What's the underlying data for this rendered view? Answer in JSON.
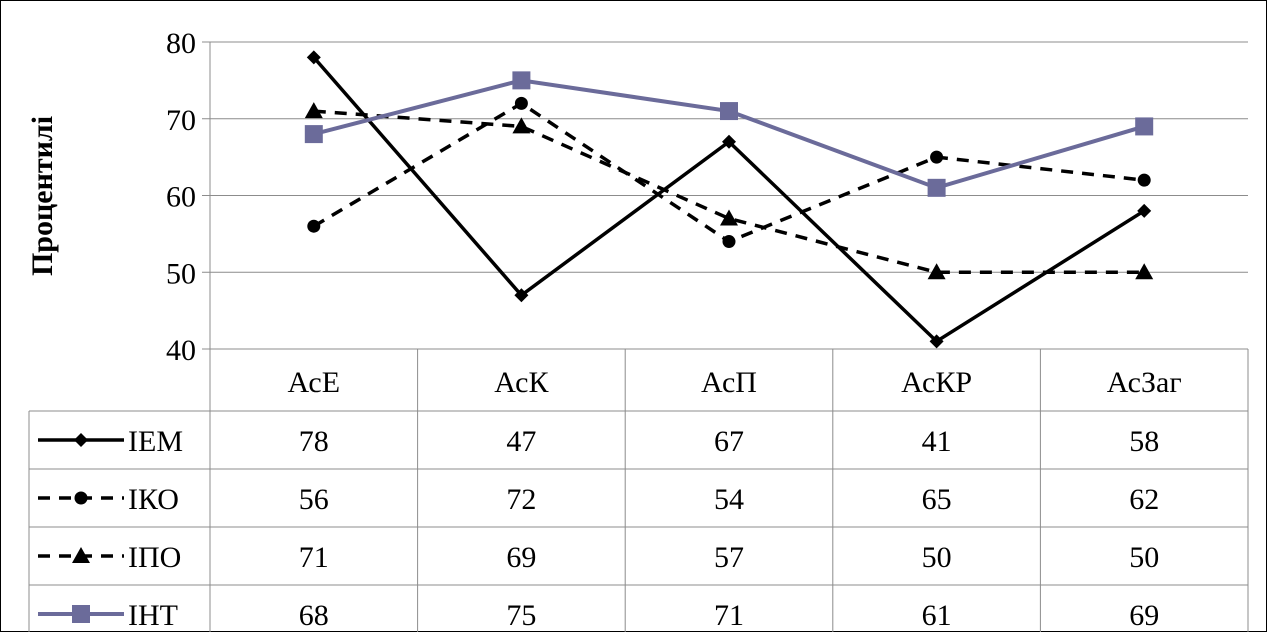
{
  "chart_data": {
    "type": "line",
    "title": "",
    "xlabel": "",
    "ylabel": "Процентилі",
    "ylim": [
      40,
      80
    ],
    "yticks": [
      40,
      50,
      60,
      70,
      80
    ],
    "grid": true,
    "legend": "data-table-below",
    "categories": [
      "АсЕ",
      "АсК",
      "АсП",
      "АсКР",
      "АсЗаг"
    ],
    "series": [
      {
        "name": "ІЕМ",
        "values": [
          78,
          47,
          67,
          41,
          58
        ],
        "color": "#000000",
        "line": "solid",
        "marker": "diamond"
      },
      {
        "name": "ІКО",
        "values": [
          56,
          72,
          54,
          65,
          62
        ],
        "color": "#000000",
        "line": "dashed",
        "marker": "circle"
      },
      {
        "name": "ІПО",
        "values": [
          71,
          69,
          57,
          50,
          50
        ],
        "color": "#000000",
        "line": "dashed",
        "marker": "triangle"
      },
      {
        "name": "ІНТ",
        "values": [
          68,
          75,
          71,
          61,
          69
        ],
        "color": "#6b6b9a",
        "line": "solid",
        "marker": "square"
      }
    ]
  }
}
